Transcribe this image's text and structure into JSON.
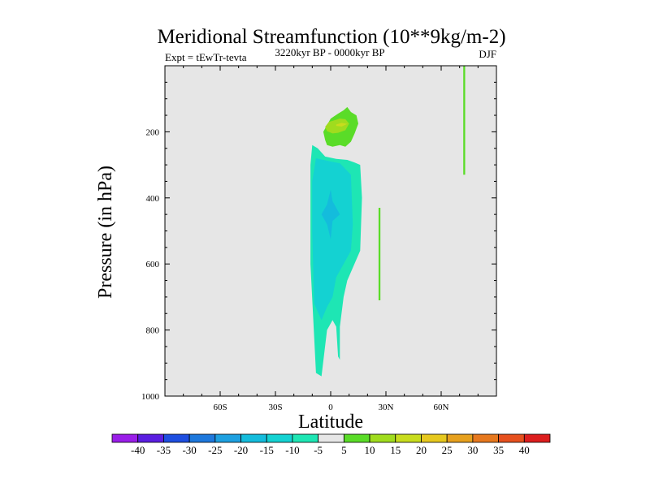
{
  "chart_data": {
    "type": "heatmap",
    "title": "Meridional Streamfunction (10**9kg/m-2)",
    "subtitle_left": "Expt = tEwTr-tevta",
    "subtitle_center": "3220kyr BP - 0000kyr BP",
    "subtitle_right": "DJF",
    "xlabel": "Latitude",
    "ylabel": "Pressure (in hPa)",
    "xlim": [
      -90,
      90
    ],
    "ylim": [
      1000,
      0
    ],
    "x_ticks": [
      {
        "value": -60,
        "label": "60S"
      },
      {
        "value": -30,
        "label": "30S"
      },
      {
        "value": 0,
        "label": "0"
      },
      {
        "value": 30,
        "label": "30N"
      },
      {
        "value": 60,
        "label": "60N"
      }
    ],
    "y_ticks": [
      {
        "value": 200,
        "label": "200"
      },
      {
        "value": 400,
        "label": "400"
      },
      {
        "value": 600,
        "label": "600"
      },
      {
        "value": 800,
        "label": "800"
      },
      {
        "value": 1000,
        "label": "1000"
      }
    ],
    "background_color": "#e6e6e6",
    "colorbar": {
      "boundaries": [
        -45,
        -40,
        -35,
        -30,
        -25,
        -20,
        -15,
        -10,
        -5,
        5,
        10,
        15,
        20,
        25,
        30,
        35,
        40,
        45
      ],
      "labels": [
        "-40",
        "-35",
        "-30",
        "-25",
        "-20",
        "-15",
        "-10",
        "-5",
        "5",
        "10",
        "15",
        "20",
        "25",
        "30",
        "35",
        "40"
      ],
      "colors": [
        "#9a1ee8",
        "#5a1ee0",
        "#1e4ee0",
        "#1e78dc",
        "#1ea0e0",
        "#14bcdc",
        "#14d2d2",
        "#1ee6b4",
        "#e6e6e6",
        "#5adc28",
        "#a0dc1e",
        "#c8dc1e",
        "#e6c81e",
        "#e6a01e",
        "#e6781e",
        "#e6501e",
        "#dc1e1e"
      ]
    },
    "regions": [
      {
        "name": "positive-cell-upper",
        "level": "5 to 10",
        "color": "#5adc28",
        "polygon": [
          [
            -3,
            225
          ],
          [
            -4,
            200
          ],
          [
            0,
            160
          ],
          [
            4,
            145
          ],
          [
            7,
            135
          ],
          [
            9,
            125
          ],
          [
            11,
            140
          ],
          [
            14,
            150
          ],
          [
            15,
            175
          ],
          [
            13,
            205
          ],
          [
            11,
            230
          ],
          [
            8,
            245
          ],
          [
            5,
            240
          ],
          [
            1,
            245
          ],
          [
            -2,
            240
          ]
        ]
      },
      {
        "name": "positive-cell-core",
        "level": "10 to 15",
        "color": "#a0dc1e",
        "polygon": [
          [
            -3,
            185
          ],
          [
            -1,
            170
          ],
          [
            2,
            165
          ],
          [
            5,
            160
          ],
          [
            8,
            162
          ],
          [
            10,
            175
          ],
          [
            8,
            195
          ],
          [
            4,
            203
          ],
          [
            1,
            205
          ],
          [
            -2,
            198
          ]
        ]
      },
      {
        "name": "positive-cell-peak",
        "level": "15 to 20",
        "color": "#c8dc1e",
        "polygon": [
          [
            3,
            178
          ],
          [
            6,
            173
          ],
          [
            9,
            176
          ],
          [
            6,
            184
          ],
          [
            3,
            182
          ]
        ]
      },
      {
        "name": "negative-cell-outer",
        "level": "-10 to -5",
        "color": "#1ee6b4",
        "polygon": [
          [
            -10,
            240
          ],
          [
            -7,
            250
          ],
          [
            -3,
            275
          ],
          [
            3,
            282
          ],
          [
            9,
            285
          ],
          [
            13,
            293
          ],
          [
            16,
            300
          ],
          [
            17,
            400
          ],
          [
            16,
            560
          ],
          [
            9,
            650
          ],
          [
            7,
            700
          ],
          [
            5,
            790
          ],
          [
            5,
            890
          ],
          [
            4,
            880
          ],
          [
            3,
            790
          ],
          [
            1,
            770
          ],
          [
            -2,
            800
          ],
          [
            -5,
            940
          ],
          [
            -8,
            930
          ],
          [
            -11,
            600
          ],
          [
            -11,
            400
          ],
          [
            -11,
            300
          ]
        ]
      },
      {
        "name": "negative-cell-inner",
        "level": "-15 to -10",
        "color": "#14d2d2",
        "polygon": [
          [
            -8,
            280
          ],
          [
            0,
            290
          ],
          [
            5,
            295
          ],
          [
            11,
            330
          ],
          [
            12,
            480
          ],
          [
            11,
            560
          ],
          [
            7,
            600
          ],
          [
            3,
            640
          ],
          [
            1,
            700
          ],
          [
            -2,
            730
          ],
          [
            -5,
            770
          ],
          [
            -9,
            720
          ],
          [
            -10,
            500
          ],
          [
            -10,
            350
          ]
        ]
      },
      {
        "name": "negative-cell-core",
        "level": "-20 to -15",
        "color": "#14bcdc",
        "polygon": [
          [
            -5,
            450
          ],
          [
            -2,
            420
          ],
          [
            0,
            375
          ],
          [
            1,
            410
          ],
          [
            5,
            450
          ],
          [
            1,
            470
          ],
          [
            0,
            525
          ],
          [
            -2,
            480
          ]
        ]
      },
      {
        "name": "positive-strip-tropics",
        "level": "5 to 10",
        "color": "#5adc28",
        "polygon": [
          [
            26,
            430
          ],
          [
            27,
            430
          ],
          [
            27,
            710
          ],
          [
            26,
            710
          ]
        ]
      },
      {
        "name": "positive-strip-high-lat",
        "level": "5 to 10",
        "color": "#5adc28",
        "polygon": [
          [
            72,
            0
          ],
          [
            73,
            0
          ],
          [
            73,
            330
          ],
          [
            72,
            330
          ]
        ]
      }
    ]
  }
}
